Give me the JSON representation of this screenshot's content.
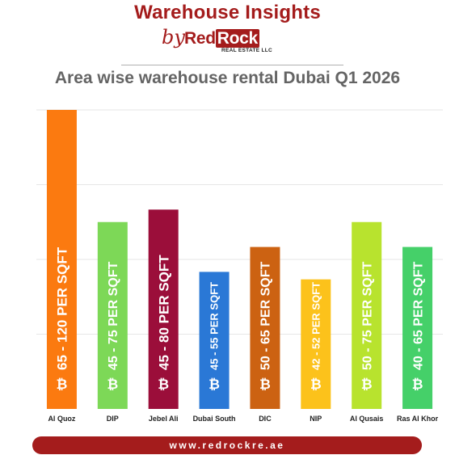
{
  "header": {
    "title": "Warehouse Insights",
    "by": "by",
    "logo_red": "Red",
    "logo_rock": "Rock",
    "logo_sub": "REAL ESTATE LLC"
  },
  "chart_data": {
    "type": "bar",
    "title": "Area wise warehouse rental Dubai Q1 2026",
    "xlabel": "",
    "ylabel": "",
    "ylim": [
      0,
      120
    ],
    "grid": true,
    "categories": [
      "Al Quoz",
      "DIP",
      "Jebel Ali",
      "Dubai South",
      "DIC",
      "NIP",
      "Al Qusais",
      "Ras Al Khor"
    ],
    "values": [
      120,
      75,
      80,
      55,
      65,
      52,
      75,
      65
    ],
    "ranges": [
      "65 - 120",
      "45 - 75",
      "45 - 80",
      "45 - 55",
      "50 - 65",
      "42 - 52",
      "50 - 75",
      "40 - 65"
    ],
    "unit_label": "PER SQFT",
    "currency_symbol": "₿",
    "colors": [
      "#fb7a10",
      "#7dd857",
      "#9b0e3a",
      "#2a78d6",
      "#cc6212",
      "#fcc21b",
      "#b8e32e",
      "#45d069"
    ]
  },
  "footer": {
    "website": "www.redrockre.ae"
  }
}
